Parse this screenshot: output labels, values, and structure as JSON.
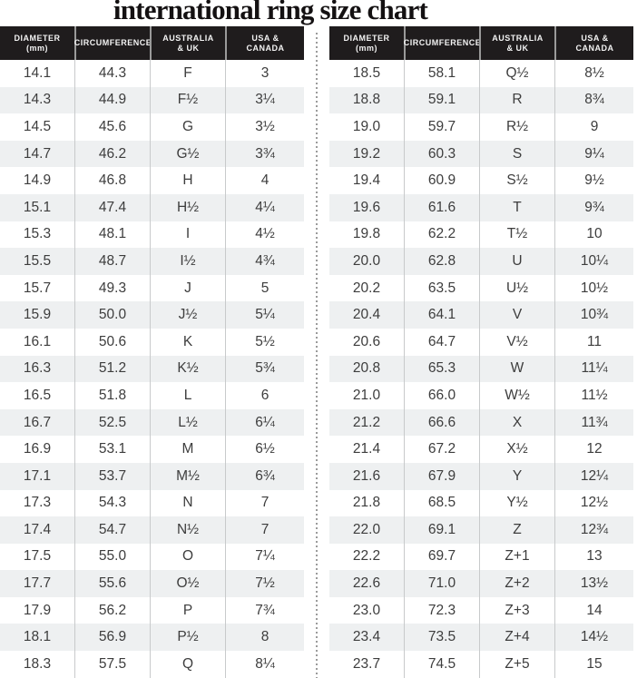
{
  "title": "international ring size chart",
  "header_lines": [
    [
      "DIAMETER",
      "(mm)"
    ],
    [
      "CIRCUMFERENCE",
      ""
    ],
    [
      "AUSTRALIA",
      "& UK"
    ],
    [
      "USA &",
      "CANADA"
    ]
  ],
  "colors": {
    "header_bg": "#1f1c1d",
    "header_text": "#f3f3f3",
    "row_alt_bg": "#eef0f1",
    "column_divider": "#c8cacb",
    "dotted_divider": "#9b9b9b",
    "body_text": "#3d3d3d",
    "title_text": "#141112"
  },
  "chart_data": [
    {
      "type": "table",
      "title": "international ring size chart",
      "columns": [
        "DIAMETER (mm)",
        "CIRCUMFERENCE",
        "AUSTRALIA & UK",
        "USA & CANADA"
      ],
      "rows": [
        [
          "14.1",
          "44.3",
          "F",
          "3"
        ],
        [
          "14.3",
          "44.9",
          "F½",
          "3¼"
        ],
        [
          "14.5",
          "45.6",
          "G",
          "3½"
        ],
        [
          "14.7",
          "46.2",
          "G½",
          "3¾"
        ],
        [
          "14.9",
          "46.8",
          "H",
          "4"
        ],
        [
          "15.1",
          "47.4",
          "H½",
          "4¼"
        ],
        [
          "15.3",
          "48.1",
          "I",
          "4½"
        ],
        [
          "15.5",
          "48.7",
          "I½",
          "4¾"
        ],
        [
          "15.7",
          "49.3",
          "J",
          "5"
        ],
        [
          "15.9",
          "50.0",
          "J½",
          "5¼"
        ],
        [
          "16.1",
          "50.6",
          "K",
          "5½"
        ],
        [
          "16.3",
          "51.2",
          "K½",
          "5¾"
        ],
        [
          "16.5",
          "51.8",
          "L",
          "6"
        ],
        [
          "16.7",
          "52.5",
          "L½",
          "6¼"
        ],
        [
          "16.9",
          "53.1",
          "M",
          "6½"
        ],
        [
          "17.1",
          "53.7",
          "M½",
          "6¾"
        ],
        [
          "17.3",
          "54.3",
          "N",
          "7"
        ],
        [
          "17.4",
          "54.7",
          "N½",
          "7"
        ],
        [
          "17.5",
          "55.0",
          "O",
          "7¼"
        ],
        [
          "17.7",
          "55.6",
          "O½",
          "7½"
        ],
        [
          "17.9",
          "56.2",
          "P",
          "7¾"
        ],
        [
          "18.1",
          "56.9",
          "P½",
          "8"
        ],
        [
          "18.3",
          "57.5",
          "Q",
          "8¼"
        ]
      ]
    },
    {
      "type": "table",
      "columns": [
        "DIAMETER (mm)",
        "CIRCUMFERENCE",
        "AUSTRALIA & UK",
        "USA & CANADA"
      ],
      "rows": [
        [
          "18.5",
          "58.1",
          "Q½",
          "8½"
        ],
        [
          "18.8",
          "59.1",
          "R",
          "8¾"
        ],
        [
          "19.0",
          "59.7",
          "R½",
          "9"
        ],
        [
          "19.2",
          "60.3",
          "S",
          "9¼"
        ],
        [
          "19.4",
          "60.9",
          "S½",
          "9½"
        ],
        [
          "19.6",
          "61.6",
          "T",
          "9¾"
        ],
        [
          "19.8",
          "62.2",
          "T½",
          "10"
        ],
        [
          "20.0",
          "62.8",
          "U",
          "10¼"
        ],
        [
          "20.2",
          "63.5",
          "U½",
          "10½"
        ],
        [
          "20.4",
          "64.1",
          "V",
          "10¾"
        ],
        [
          "20.6",
          "64.7",
          "V½",
          "11"
        ],
        [
          "20.8",
          "65.3",
          "W",
          "11¼"
        ],
        [
          "21.0",
          "66.0",
          "W½",
          "11½"
        ],
        [
          "21.2",
          "66.6",
          "X",
          "11¾"
        ],
        [
          "21.4",
          "67.2",
          "X½",
          "12"
        ],
        [
          "21.6",
          "67.9",
          "Y",
          "12¼"
        ],
        [
          "21.8",
          "68.5",
          "Y½",
          "12½"
        ],
        [
          "22.0",
          "69.1",
          "Z",
          "12¾"
        ],
        [
          "22.2",
          "69.7",
          "Z+1",
          "13"
        ],
        [
          "22.6",
          "71.0",
          "Z+2",
          "13½"
        ],
        [
          "23.0",
          "72.3",
          "Z+3",
          "14"
        ],
        [
          "23.4",
          "73.5",
          "Z+4",
          "14½"
        ],
        [
          "23.7",
          "74.5",
          "Z+5",
          "15"
        ]
      ]
    }
  ]
}
